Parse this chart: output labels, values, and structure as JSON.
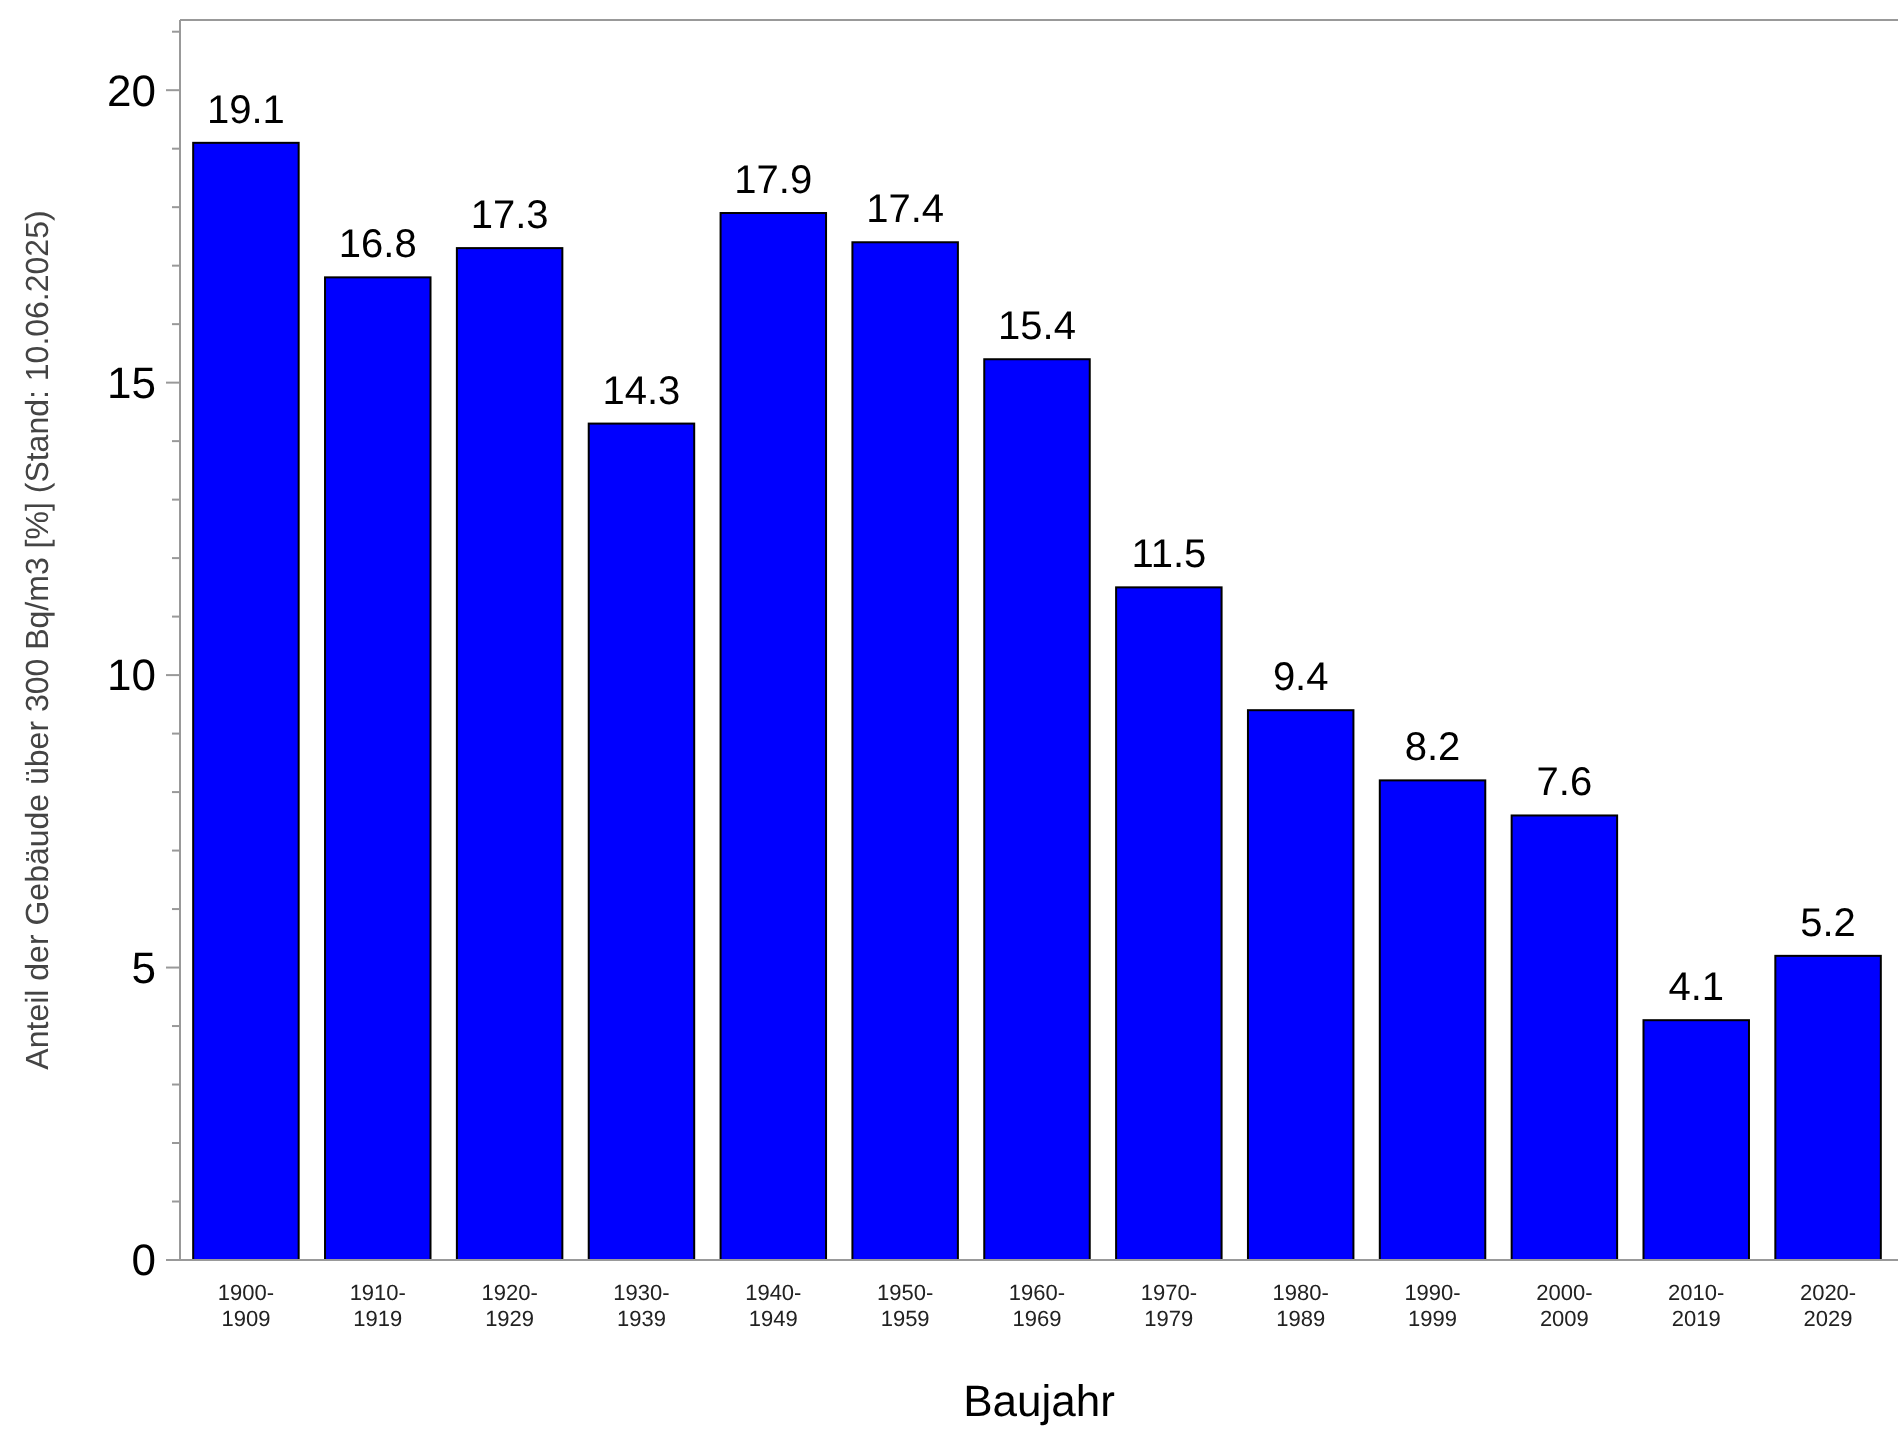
{
  "chart_data": {
    "type": "bar",
    "xlabel": "Baujahr",
    "ylabel": "Anteil der Gebäude über 300 Bq/m3 [%] (Stand: 10.06.2025)",
    "categories": [
      "1900-1909",
      "1910-1919",
      "1920-1929",
      "1930-1939",
      "1940-1949",
      "1950-1959",
      "1960-1969",
      "1970-1979",
      "1980-1989",
      "1990-1999",
      "2000-2009",
      "2010-2019",
      "2020-2029"
    ],
    "values": [
      19.1,
      16.8,
      17.3,
      14.3,
      17.9,
      17.4,
      15.4,
      11.5,
      9.4,
      8.2,
      7.6,
      4.1,
      5.2
    ],
    "color": "#0000ff",
    "ylim": [
      0,
      21.2
    ],
    "yticks": [
      0,
      {
        "value": 1,
        "label": null
      },
      {
        "value": 2,
        "label": null
      },
      {
        "value": 3,
        "label": null
      },
      {
        "value": 4,
        "label": null
      },
      5,
      {
        "value": 6,
        "label": null
      },
      {
        "value": 7,
        "label": null
      },
      {
        "value": 8,
        "label": null
      },
      {
        "value": 9,
        "label": null
      },
      10,
      {
        "value": 11,
        "label": null
      },
      {
        "value": 12,
        "label": null
      },
      {
        "value": 13,
        "label": null
      },
      {
        "value": 14,
        "label": null
      },
      15,
      {
        "value": 16,
        "label": null
      },
      {
        "value": 17,
        "label": null
      },
      {
        "value": 18,
        "label": null
      },
      {
        "value": 19,
        "label": null
      },
      20,
      {
        "value": 21,
        "label": null
      }
    ],
    "data_labels": true,
    "grid": false
  }
}
